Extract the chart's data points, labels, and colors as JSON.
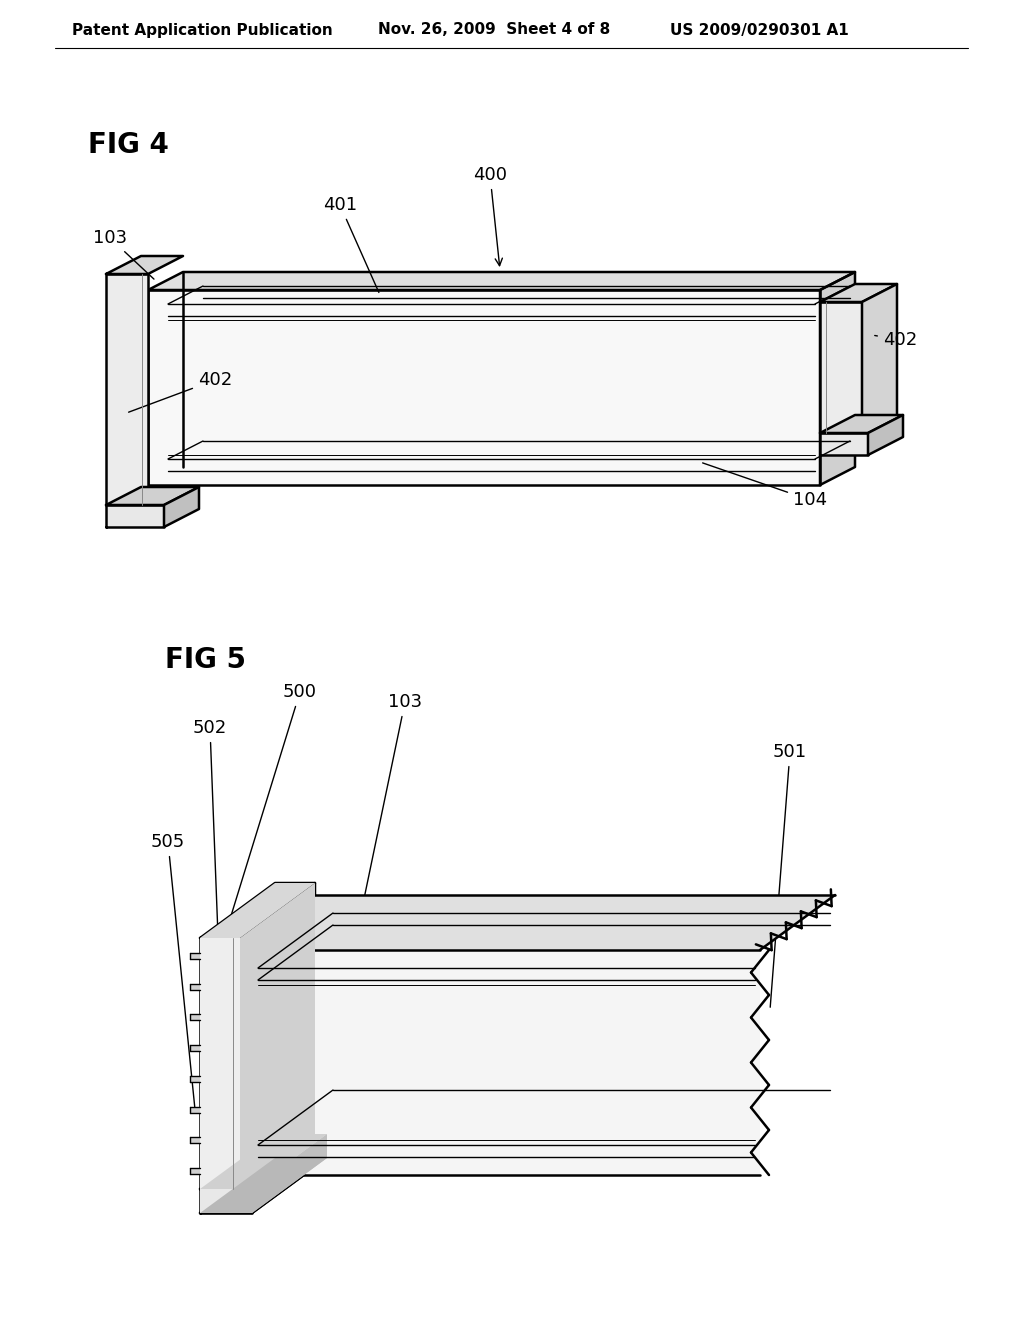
{
  "background_color": "#ffffff",
  "header_text": "Patent Application Publication",
  "header_date": "Nov. 26, 2009  Sheet 4 of 8",
  "header_patent": "US 2009/0290301 A1",
  "fig4_label": "FIG 4",
  "fig5_label": "FIG 5",
  "line_color": "#000000"
}
